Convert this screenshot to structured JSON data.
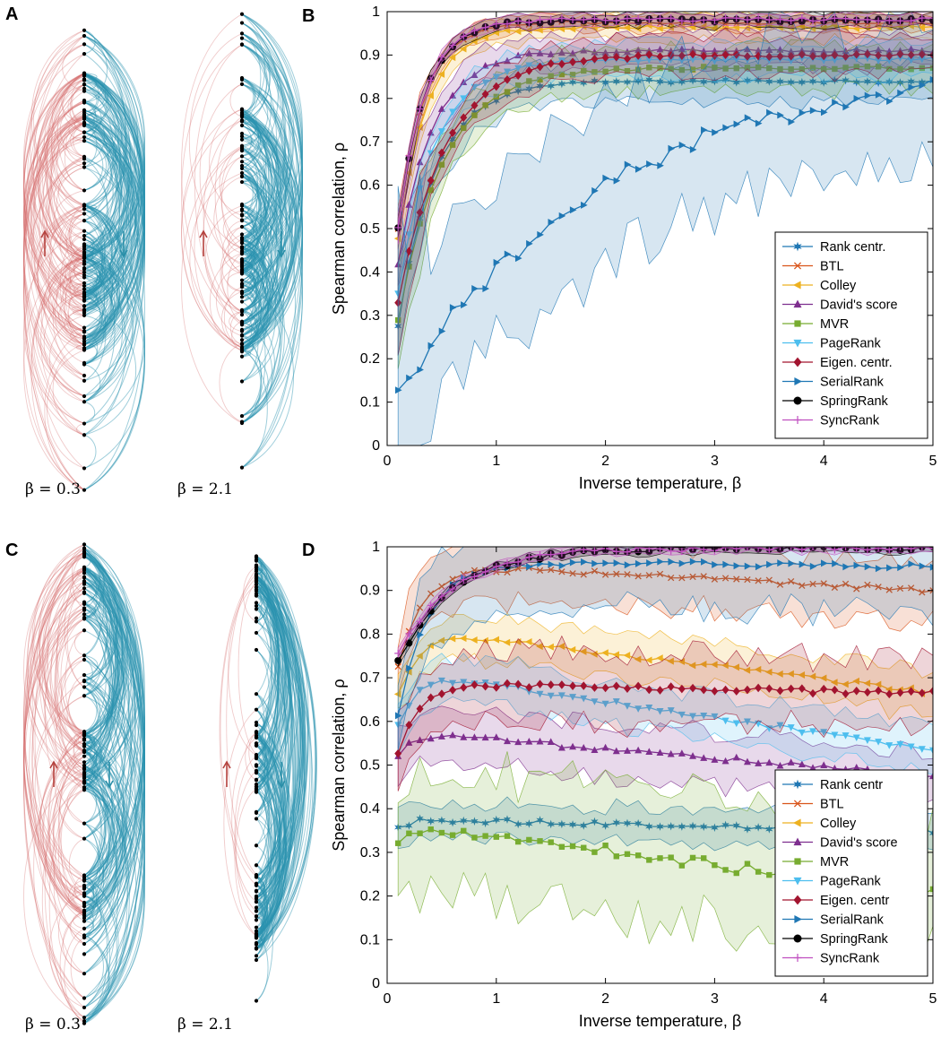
{
  "panels": {
    "A": {
      "letter": "A",
      "beta_left": "β = 0.3",
      "beta_right": "β = 2.1"
    },
    "C": {
      "letter": "C",
      "beta_left": "β = 0.3",
      "beta_right": "β = 2.1"
    }
  },
  "colors": {
    "up_arrow": "#b5433f",
    "down_arrow": "#2a8fa8",
    "edge_red": "#d46a6a",
    "edge_blue": "#2a93b0",
    "node": "#000000"
  },
  "chart_data": [
    {
      "letter": "B",
      "type": "line",
      "xlabel": "Inverse temperature, β",
      "ylabel": "Spearman correlation, ρ",
      "xlim": [
        0,
        5
      ],
      "ylim": [
        0,
        1
      ],
      "xticks": [
        0,
        1,
        2,
        3,
        4,
        5
      ],
      "yticks": [
        0,
        0.1,
        0.2,
        0.3,
        0.4,
        0.5,
        0.6,
        0.7,
        0.8,
        0.9,
        1
      ],
      "legend_position": "bottom-right",
      "series": [
        {
          "name": "Rank centr.",
          "color": "#1f77b4",
          "marker": "star",
          "b": 0.084,
          "c": 2.9,
          "p": 0.84,
          "bw": 0.05
        },
        {
          "name": "BTL",
          "color": "#d9541a",
          "marker": "x",
          "b": 0.25,
          "c": 4.2,
          "p": 0.975,
          "bw": 0.02
        },
        {
          "name": "Colley",
          "color": "#edb120",
          "marker": "triangle-left",
          "b": 0.25,
          "c": 3.8,
          "p": 0.965,
          "bw": 0.03
        },
        {
          "name": "David's score",
          "color": "#7e2f8e",
          "marker": "triangle-up",
          "b": 0.23,
          "c": 3.2,
          "p": 0.91,
          "bw": 0.04
        },
        {
          "name": "MVR",
          "color": "#77ac30",
          "marker": "square",
          "b": 0.13,
          "c": 2.4,
          "p": 0.87,
          "bw": 0.05
        },
        {
          "name": "PageRank",
          "color": "#4dbeee",
          "marker": "triangle-down",
          "b": 0.16,
          "c": 3.0,
          "p": 0.89,
          "bw": 0.04
        },
        {
          "name": "Eigen. centr.",
          "color": "#a2142f",
          "marker": "diamond",
          "b": 0.18,
          "c": 2.3,
          "p": 0.9,
          "bw": 0.045
        },
        {
          "name": "SerialRank",
          "color": "#1f77b4",
          "marker": "triangle-right",
          "b": 0.08,
          "c": 0.52,
          "p": 0.88,
          "bw": 0.18
        },
        {
          "name": "SpringRank",
          "color": "#000000",
          "marker": "circle",
          "b": 0.25,
          "c": 4.2,
          "p": 0.98,
          "bw": 0.015
        },
        {
          "name": "SyncRank",
          "color": "#c04fc0",
          "marker": "plus",
          "b": 0.25,
          "c": 4.2,
          "p": 0.982,
          "bw": 0.015
        }
      ]
    },
    {
      "letter": "D",
      "type": "line",
      "xlabel": "Inverse temperature, β",
      "ylabel": "Spearman correlation, ρ",
      "xlim": [
        0,
        5
      ],
      "ylim": [
        0,
        1
      ],
      "xticks": [
        0,
        1,
        2,
        3,
        4,
        5
      ],
      "yticks": [
        0,
        0.1,
        0.2,
        0.3,
        0.4,
        0.5,
        0.6,
        0.7,
        0.8,
        0.9,
        1
      ],
      "legend_position": "bottom-right",
      "series": [
        {
          "name": "Rank centr",
          "color": "#1f77b4",
          "marker": "star",
          "s": 0.33,
          "pk": 0.375,
          "pkx": 0.3,
          "e": 0.35,
          "bw": 0.04
        },
        {
          "name": "BTL",
          "color": "#d9541a",
          "marker": "x",
          "s": 0.6,
          "pk": 0.955,
          "pkx": 0.7,
          "e": 0.9,
          "bw": 0.07
        },
        {
          "name": "Colley",
          "color": "#edb120",
          "marker": "triangle-left",
          "s": 0.57,
          "pk": 0.8,
          "pkx": 0.6,
          "e": 0.665,
          "bw": 0.05
        },
        {
          "name": "David's score",
          "color": "#7e2f8e",
          "marker": "triangle-up",
          "s": 0.46,
          "pk": 0.57,
          "pkx": 0.4,
          "e": 0.475,
          "bw": 0.06
        },
        {
          "name": "MVR",
          "color": "#77ac30",
          "marker": "square",
          "s": 0.26,
          "pk": 0.36,
          "pkx": 0.35,
          "e": 0.205,
          "bw": 0.14
        },
        {
          "name": "PageRank",
          "color": "#4dbeee",
          "marker": "triangle-down",
          "s": 0.5,
          "pk": 0.7,
          "pkx": 0.5,
          "e": 0.535,
          "bw": 0.05
        },
        {
          "name": "Eigen. centr",
          "color": "#a2142f",
          "marker": "diamond",
          "s": 0.42,
          "pk": 0.685,
          "pkx": 0.6,
          "e": 0.665,
          "bw": 0.08
        },
        {
          "name": "SerialRank",
          "color": "#1f77b4",
          "marker": "triangle-right",
          "s": 0.45,
          "pk": 0.965,
          "pkx": 0.8,
          "e": 0.955,
          "bw": 0.1
        },
        {
          "name": "SpringRank",
          "color": "#000000",
          "marker": "circle",
          "s": 0.68,
          "pk": 0.995,
          "pkx": 1.5,
          "e": 0.998,
          "bw": 0.01
        },
        {
          "name": "SyncRank",
          "color": "#c04fc0",
          "marker": "plus",
          "s": 0.7,
          "pk": 0.996,
          "pkx": 1.5,
          "e": 0.998,
          "bw": 0.01
        }
      ]
    }
  ]
}
